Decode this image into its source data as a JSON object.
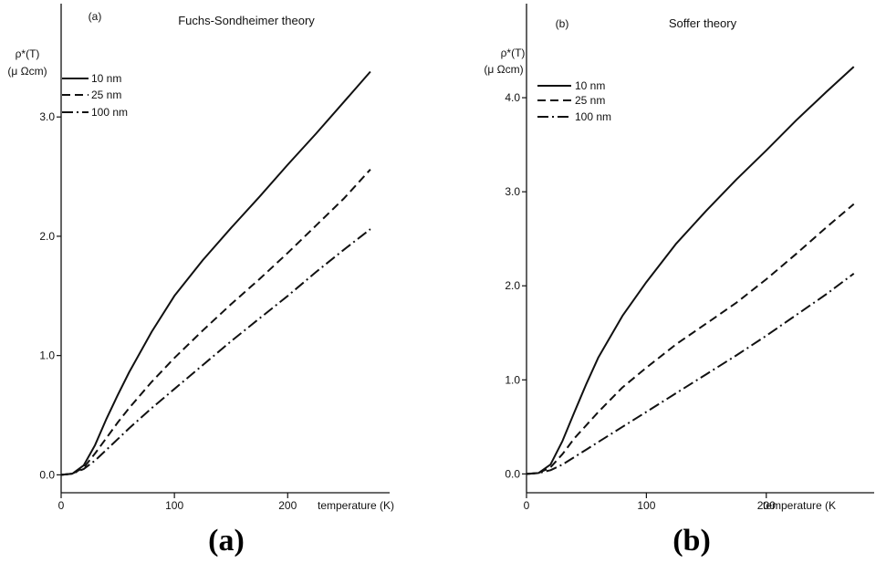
{
  "chart_data": [
    {
      "type": "line",
      "panel_label": "(a)",
      "title": "Fuchs-Sondheimer theory",
      "caption": "(a)",
      "ylabel_line1": "ρ*(T)",
      "ylabel_line2": "(μ Ωcm)",
      "xlabel": "temperature (K)",
      "xlim": [
        0,
        290
      ],
      "ylim": [
        -0.15,
        3.95
      ],
      "x_ticks": [
        0,
        100,
        200
      ],
      "x_tick_labels": [
        "0",
        "100",
        "200"
      ],
      "y_ticks": [
        0.0,
        1.0,
        2.0,
        3.0
      ],
      "y_tick_labels": [
        "0.0",
        "1.0",
        "2.0",
        "3.0"
      ],
      "legend_position": "top-left",
      "series": [
        {
          "name": "10 nm",
          "style": "solid",
          "x": [
            0,
            10,
            20,
            30,
            40,
            50,
            60,
            80,
            100,
            125,
            150,
            175,
            200,
            225,
            250,
            273
          ],
          "y": [
            0.0,
            0.01,
            0.08,
            0.25,
            0.47,
            0.67,
            0.86,
            1.2,
            1.5,
            1.8,
            2.07,
            2.33,
            2.6,
            2.86,
            3.13,
            3.38
          ]
        },
        {
          "name": "25 nm",
          "style": "dashed",
          "x": [
            0,
            10,
            20,
            30,
            40,
            50,
            60,
            80,
            100,
            125,
            150,
            175,
            200,
            225,
            250,
            273
          ],
          "y": [
            0.0,
            0.01,
            0.06,
            0.18,
            0.31,
            0.44,
            0.56,
            0.78,
            0.98,
            1.21,
            1.43,
            1.64,
            1.86,
            2.09,
            2.32,
            2.56
          ]
        },
        {
          "name": "100 nm",
          "style": "dashdot",
          "x": [
            0,
            10,
            20,
            30,
            40,
            50,
            60,
            80,
            100,
            125,
            150,
            175,
            200,
            225,
            250,
            273
          ],
          "y": [
            0.0,
            0.01,
            0.05,
            0.12,
            0.21,
            0.3,
            0.39,
            0.56,
            0.72,
            0.92,
            1.12,
            1.31,
            1.5,
            1.7,
            1.89,
            2.06
          ]
        }
      ]
    },
    {
      "type": "line",
      "panel_label": "(b)",
      "title": "Soffer theory",
      "caption": "(b)",
      "ylabel_line1": "ρ*(T)",
      "ylabel_line2": "(μ Ωcm)",
      "xlabel": "temperature (K",
      "xlim": [
        0,
        290
      ],
      "ylim": [
        -0.2,
        5.0
      ],
      "x_ticks": [
        0,
        100,
        200
      ],
      "x_tick_labels": [
        "0",
        "100",
        "200"
      ],
      "y_ticks": [
        0.0,
        1.0,
        2.0,
        3.0,
        4.0
      ],
      "y_tick_labels": [
        "0.0",
        "1.0",
        "2.0",
        "3.0",
        "4.0"
      ],
      "legend_position": "top-left",
      "series": [
        {
          "name": "10 nm",
          "style": "solid",
          "x": [
            0,
            10,
            20,
            30,
            40,
            50,
            60,
            80,
            100,
            125,
            150,
            175,
            200,
            225,
            250,
            273
          ],
          "y": [
            0.0,
            0.01,
            0.1,
            0.35,
            0.66,
            0.96,
            1.24,
            1.68,
            2.04,
            2.45,
            2.8,
            3.13,
            3.44,
            3.76,
            4.06,
            4.33
          ]
        },
        {
          "name": "25 nm",
          "style": "dashed",
          "x": [
            0,
            10,
            20,
            30,
            40,
            50,
            60,
            80,
            100,
            125,
            150,
            175,
            200,
            225,
            250,
            273
          ],
          "y": [
            0.0,
            0.01,
            0.07,
            0.21,
            0.38,
            0.52,
            0.66,
            0.92,
            1.13,
            1.38,
            1.6,
            1.82,
            2.07,
            2.34,
            2.62,
            2.87
          ]
        },
        {
          "name": "100 nm",
          "style": "dashdot",
          "x": [
            0,
            10,
            20,
            30,
            40,
            50,
            60,
            80,
            100,
            125,
            150,
            175,
            200,
            225,
            250,
            273
          ],
          "y": [
            0.0,
            0.01,
            0.04,
            0.1,
            0.18,
            0.26,
            0.34,
            0.5,
            0.66,
            0.86,
            1.06,
            1.26,
            1.47,
            1.69,
            1.91,
            2.13
          ]
        }
      ]
    }
  ]
}
